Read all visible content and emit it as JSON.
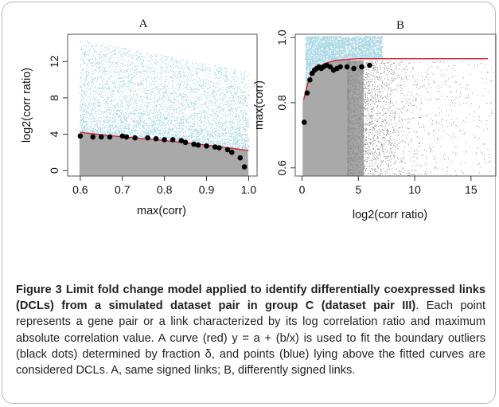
{
  "chart_data": [
    {
      "type": "scatter",
      "title": "A",
      "xlabel": "max(corr)",
      "ylabel": "log2(corr ratio)",
      "xlim": [
        0.57,
        1.02
      ],
      "ylim": [
        -0.6,
        15.0
      ],
      "xticks": [
        "0.6",
        "0.7",
        "0.8",
        "0.9",
        "1.0"
      ],
      "xtick_values": [
        0.6,
        0.7,
        0.8,
        0.9,
        1.0
      ],
      "yticks": [
        "0",
        "4",
        "8",
        "12"
      ],
      "ytick_values": [
        0,
        4,
        8,
        12
      ],
      "fit_curve": {
        "formula": "y = a + (b/x)",
        "color": "#d81e2a",
        "x": [
          0.6,
          0.7,
          0.8,
          0.9,
          1.0
        ],
        "y": [
          4.2,
          3.7,
          3.3,
          2.8,
          2.2
        ]
      },
      "series": [
        {
          "color": "#a8d7e4",
          "note_points": "dense cloud above fitted curve"
        },
        {
          "color": "#a9a9a9",
          "note_points": "dense cloud below fitted curve"
        },
        {
          "color": "#000000",
          "x": [
            0.6,
            0.63,
            0.65,
            0.67,
            0.7,
            0.71,
            0.73,
            0.76,
            0.78,
            0.8,
            0.82,
            0.84,
            0.85,
            0.87,
            0.88,
            0.9,
            0.92,
            0.93,
            0.95,
            0.96,
            0.98,
            0.99
          ],
          "y": [
            3.8,
            3.7,
            3.7,
            3.7,
            3.8,
            3.7,
            3.6,
            3.6,
            3.5,
            3.4,
            3.4,
            3.3,
            3.1,
            2.9,
            2.8,
            2.7,
            2.6,
            2.5,
            2.3,
            2.0,
            1.4,
            0.4
          ]
        }
      ]
    },
    {
      "type": "scatter",
      "title": "B",
      "xlabel": "log2(corr ratio)",
      "ylabel": "max(corr)",
      "xlim": [
        -0.6,
        17.2
      ],
      "ylim": [
        0.575,
        1.01
      ],
      "xticks": [
        "0",
        "5",
        "10",
        "15"
      ],
      "xtick_values": [
        0,
        5,
        10,
        15
      ],
      "yticks": [
        "0.6",
        "0.8",
        "1.0"
      ],
      "ytick_values": [
        0.6,
        0.8,
        1.0
      ],
      "fit_curve": {
        "formula": "y = a + (b/x)",
        "color": "#d81e2a",
        "x": [
          0.15,
          0.5,
          1,
          2,
          3,
          5,
          10,
          16.5
        ],
        "y": [
          0.81,
          0.86,
          0.9,
          0.92,
          0.93,
          0.935,
          0.935,
          0.935
        ]
      },
      "series": [
        {
          "color": "#a8d7e4",
          "note_points": "dense cloud above fitted curve"
        },
        {
          "color": "#a9a9a9",
          "note_points": "dense cloud below fitted curve"
        },
        {
          "color": "#000000",
          "x": [
            0.2,
            0.45,
            0.7,
            0.9,
            1.1,
            1.3,
            1.5,
            1.7,
            1.9,
            2.2,
            2.5,
            2.8,
            3.1,
            3.4,
            4.0,
            4.6,
            5.3,
            6.0
          ],
          "y": [
            0.74,
            0.83,
            0.87,
            0.89,
            0.9,
            0.905,
            0.91,
            0.905,
            0.91,
            0.915,
            0.91,
            0.9,
            0.905,
            0.91,
            0.91,
            0.905,
            0.91,
            0.915
          ]
        }
      ]
    }
  ],
  "caption": {
    "label": "Figure 3",
    "title": "Limit fold change model applied to identify differentially coexpressed links (DCLs) from a simulated dataset pair in group C (dataset pair III)",
    "body": ". Each point represents a gene pair or a link characterized by its log correlation ratio and maximum absolute correlation value. A curve (red) y = a + (b/x) is used to fit the boundary outliers (black dots) determined by fraction δ, and points (blue) lying above the fitted curves are considered DCLs. A, same signed links; B, differently signed links."
  }
}
